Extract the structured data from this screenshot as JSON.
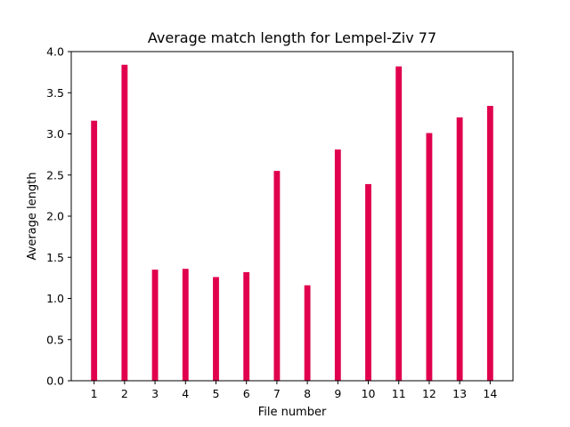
{
  "chart_data": {
    "type": "bar",
    "title": "Average match length for Lempel-Ziv 77",
    "xlabel": "File number",
    "ylabel": "Average length",
    "categories": [
      "1",
      "2",
      "3",
      "4",
      "5",
      "6",
      "7",
      "8",
      "9",
      "10",
      "11",
      "12",
      "13",
      "14"
    ],
    "values": [
      3.16,
      3.84,
      1.35,
      1.36,
      1.26,
      1.32,
      2.55,
      1.16,
      2.81,
      2.39,
      3.82,
      3.01,
      3.2,
      3.34
    ],
    "ylim": [
      0,
      4.0
    ],
    "yticks": [
      "0.0",
      "0.5",
      "1.0",
      "1.5",
      "2.0",
      "2.5",
      "3.0",
      "3.5",
      "4.0"
    ],
    "bar_color": "#e0004d",
    "grid": false
  }
}
